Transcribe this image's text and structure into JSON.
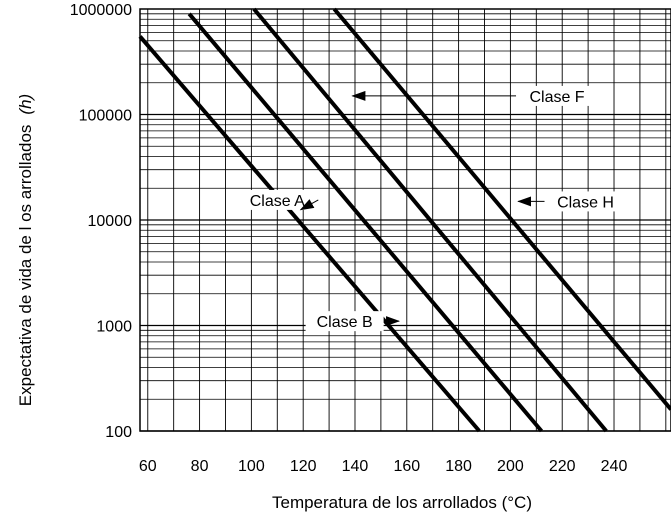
{
  "chart_data": {
    "type": "line",
    "title": "",
    "xlabel": "Temperatura de los arrollados (°C)",
    "ylabel": "Expectativa de vida de l os arrollados",
    "ylabel_unit": "(h)",
    "xlim": [
      57,
      262
    ],
    "ylim": [
      100,
      1000000
    ],
    "y_scale": "log",
    "grid": true,
    "x_ticks": [
      "60",
      "80",
      "100",
      "120",
      "140",
      "160",
      "180",
      "200",
      "220",
      "240"
    ],
    "x_tick_values": [
      60,
      80,
      100,
      120,
      140,
      160,
      180,
      200,
      220,
      240
    ],
    "y_ticks": [
      "100",
      "1000",
      "10000",
      "100000",
      "1000000"
    ],
    "y_tick_values": [
      100,
      1000,
      10000,
      100000,
      1000000
    ],
    "series": [
      {
        "name": "Clase A",
        "x": [
          57,
          188
        ],
        "y": [
          550000,
          100
        ]
      },
      {
        "name": "Clase B",
        "x": [
          76,
          212
        ],
        "y": [
          900000,
          100
        ]
      },
      {
        "name": "Clase F",
        "x": [
          101,
          237
        ],
        "y": [
          1000000,
          100
        ]
      },
      {
        "name": "Clase H",
        "x": [
          132,
          262
        ],
        "y": [
          1000000,
          160
        ]
      }
    ],
    "annotations": [
      {
        "label": "Clase A",
        "text_x": 110,
        "text_y": 15500,
        "arrow_to_x": 119,
        "arrow_to_y": 12500
      },
      {
        "label": "Clase B",
        "text_x": 136,
        "text_y": 1100,
        "arrow_to_x": 157,
        "arrow_to_y": 1100
      },
      {
        "label": "Clase F",
        "text_x": 218,
        "text_y": 150000,
        "arrow_to_x": 139,
        "arrow_to_y": 150000
      },
      {
        "label": "Clase H",
        "text_x": 229,
        "text_y": 15000,
        "arrow_to_x": 203,
        "arrow_to_y": 15000
      }
    ],
    "colors": {
      "line": "#000000",
      "grid": "#000000",
      "background": "#ffffff"
    }
  }
}
